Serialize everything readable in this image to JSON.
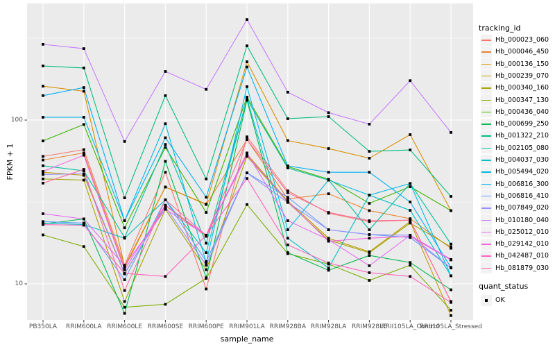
{
  "chart_data": {
    "type": "line",
    "title": "",
    "xlabel": "sample_name",
    "ylabel": "FPKM + 1",
    "y_scale": "log10",
    "y_ticks": [
      10,
      100
    ],
    "y_minor_ticks": [
      31.6,
      316
    ],
    "ylim": [
      6,
      510
    ],
    "grid": true,
    "panel_bg": "#ebebeb",
    "grid_color": "#ffffff",
    "point_marker": "black-square",
    "categories": [
      "PB350LA",
      "RRIM600LA",
      "RRIM600LE",
      "RRIM600SE",
      "RRIM600PE",
      "RRIM901LA",
      "RRIM928BA",
      "RRIM928LA",
      "RRIM928LE",
      "RRII105LA_Control",
      "RRII105LA_Stressed"
    ],
    "legend": {
      "title": "tracking_id",
      "position": "right"
    },
    "quant_status": {
      "title": "quant_status",
      "items": [
        {
          "label": "OK",
          "marker": "black-square",
          "color": "#000000"
        }
      ]
    },
    "series": [
      {
        "name": "Hb_000023_060",
        "color": "#F8766D",
        "values": [
          60,
          66,
          13,
          48,
          9.3,
          79,
          37,
          27,
          24,
          24.5,
          7.8
        ]
      },
      {
        "name": "Hb_000046_450",
        "color": "#EA8331",
        "values": [
          57,
          63,
          12.5,
          39,
          30.5,
          76,
          33,
          35.5,
          28,
          25,
          16.5
        ]
      },
      {
        "name": "Hb_000136_150",
        "color": "#D89000",
        "values": [
          161,
          150,
          12.8,
          39,
          30.7,
          227,
          75,
          67,
          58.5,
          81.5,
          28
        ]
      },
      {
        "name": "Hb_000239_070",
        "color": "#C09B00",
        "values": [
          48,
          46,
          11.5,
          30,
          19.5,
          62,
          32,
          19,
          15.7,
          24,
          6.4
        ]
      },
      {
        "name": "Hb_000340_160",
        "color": "#A3A500",
        "values": [
          43.7,
          43,
          7.8,
          28.5,
          12.2,
          60,
          31.5,
          18.5,
          15.5,
          23.5,
          16.8
        ]
      },
      {
        "name": "Hb_000347_130",
        "color": "#7CAE00",
        "values": [
          19.9,
          16.9,
          7.2,
          7.5,
          10.8,
          30.5,
          15.3,
          13.2,
          10.5,
          13,
          6.9
        ]
      },
      {
        "name": "Hb_000436_040",
        "color": "#39B600",
        "values": [
          74.6,
          94,
          22,
          68,
          27.3,
          138,
          52,
          43.5,
          31,
          39.2,
          28
        ]
      },
      {
        "name": "Hb_000699_250",
        "color": "#00BB4E",
        "values": [
          23.2,
          24.9,
          6.6,
          56,
          10.9,
          132,
          15.5,
          12.1,
          14.9,
          13.5,
          9.2
        ]
      },
      {
        "name": "Hb_001322_210",
        "color": "#00BF7D",
        "values": [
          214,
          208,
          33.5,
          141,
          43.7,
          284,
          102,
          105,
          64.4,
          65.7,
          34.2
        ]
      },
      {
        "name": "Hb_002105_080",
        "color": "#00C19F",
        "values": [
          52.6,
          49,
          19.2,
          71,
          17.7,
          134,
          51,
          43,
          21.4,
          41,
          17.5
        ]
      },
      {
        "name": "Hb_004037_030",
        "color": "#00BFC4",
        "values": [
          23.5,
          23,
          19,
          32.6,
          15.5,
          135,
          19,
          12.5,
          34.8,
          28.1,
          11.2
        ]
      },
      {
        "name": "Hb_005494_020",
        "color": "#00BAE3",
        "values": [
          104,
          104,
          24.3,
          95,
          13.5,
          160,
          21.4,
          43,
          34.8,
          41,
          11.2
        ]
      },
      {
        "name": "Hb_006816_300",
        "color": "#00B0F6",
        "values": [
          141,
          158,
          24.3,
          78,
          33.8,
          211,
          52.5,
          48,
          48,
          31.6,
          12.6
        ]
      },
      {
        "name": "Hb_006816_410",
        "color": "#619CFF",
        "values": [
          24,
          23.5,
          10.6,
          32.6,
          13.7,
          47.6,
          33.8,
          21.4,
          20,
          19.2,
          12.5
        ]
      },
      {
        "name": "Hb_007849_020",
        "color": "#9590FF",
        "values": [
          46.5,
          47,
          11.6,
          29.5,
          13,
          47.6,
          31.4,
          21.4,
          20,
          19.8,
          12.5
        ]
      },
      {
        "name": "Hb_010180_040",
        "color": "#C77CFF",
        "values": [
          290,
          273,
          74,
          198,
          154,
          411,
          148,
          111,
          94.4,
          174,
          84
        ]
      },
      {
        "name": "Hb_025012_010",
        "color": "#E76BF3",
        "values": [
          26.8,
          24.9,
          12.9,
          28.5,
          19.8,
          63,
          24.3,
          18.6,
          12.9,
          19.8,
          14.1
        ]
      },
      {
        "name": "Hb_029142_010",
        "color": "#F564E3",
        "values": [
          48.6,
          61,
          12.2,
          30.2,
          19.8,
          61,
          31.8,
          18.2,
          19,
          19.5,
          14
        ]
      },
      {
        "name": "Hb_042487_010",
        "color": "#FF62BC",
        "values": [
          23,
          22.8,
          11.6,
          11.1,
          19.8,
          44,
          17.3,
          13.4,
          11.7,
          11.1,
          7.7
        ]
      },
      {
        "name": "Hb_081879_030",
        "color": "#FF6A98",
        "values": [
          41.2,
          50,
          9.1,
          32.6,
          19.8,
          76,
          36,
          27.3,
          24.3,
          24.5,
          7.8
        ]
      }
    ]
  }
}
